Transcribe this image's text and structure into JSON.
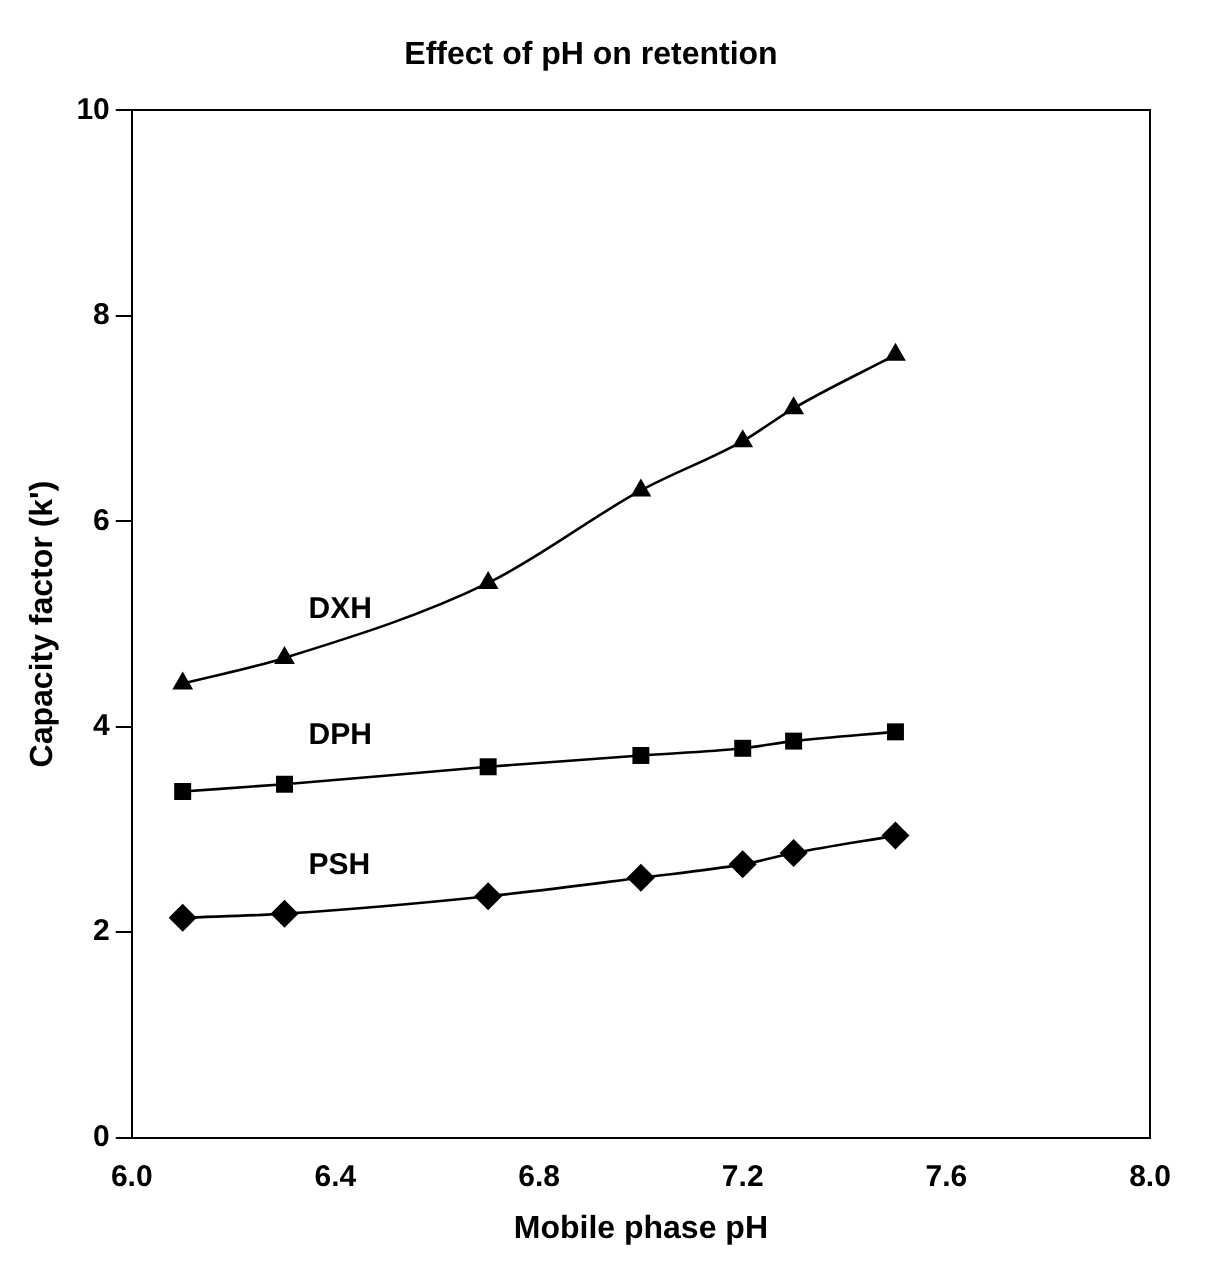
{
  "chart_data": {
    "type": "line",
    "title": "Effect of pH on retention",
    "xlabel": "Mobile phase pH",
    "ylabel": "Capacity factor (k')",
    "x": [
      6.1,
      6.3,
      6.7,
      7.0,
      7.2,
      7.3,
      7.5
    ],
    "series": [
      {
        "name": "DXH",
        "color": "#000000",
        "marker": "triangle",
        "values": [
          4.42,
          4.67,
          5.4,
          6.3,
          6.78,
          7.1,
          7.62
        ]
      },
      {
        "name": "DPH",
        "color": "#000000",
        "marker": "square",
        "values": [
          3.37,
          3.44,
          3.61,
          3.72,
          3.79,
          3.86,
          3.95
        ]
      },
      {
        "name": "PSH",
        "color": "#000000",
        "marker": "diamond",
        "values": [
          2.14,
          2.18,
          2.35,
          2.53,
          2.66,
          2.77,
          2.94
        ]
      }
    ],
    "xlim": [
      6.0,
      8.0
    ],
    "xticks": [
      {
        "value": 6.0,
        "label": "6.0"
      },
      {
        "value": 6.4,
        "label": "6.4"
      },
      {
        "value": 6.8,
        "label": "6.8"
      },
      {
        "value": 7.2,
        "label": "7.2"
      },
      {
        "value": 7.6,
        "label": "7.6"
      },
      {
        "value": 8.0,
        "label": "8.0"
      }
    ],
    "ylim": [
      0,
      10
    ],
    "yticks": [
      0,
      2,
      4,
      6,
      8,
      10
    ],
    "grid": false,
    "legend": false
  }
}
